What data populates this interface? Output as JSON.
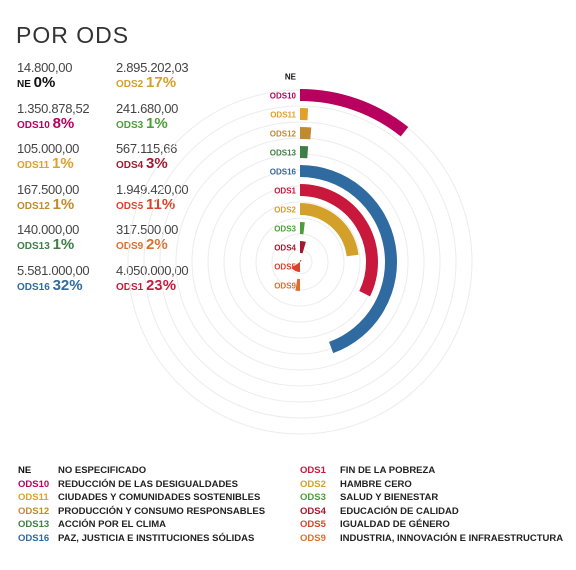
{
  "title": "POR ODS",
  "stats": [
    {
      "code": "NE",
      "amount": "14.800,00",
      "pct": "0%",
      "color": "#111111"
    },
    {
      "code": "ODS2",
      "amount": "2.895.202,03",
      "pct": "17%",
      "color": "#D3A029"
    },
    {
      "code": "ODS10",
      "amount": "1.350.878,52",
      "pct": "8%",
      "color": "#B8005F"
    },
    {
      "code": "ODS3",
      "amount": "241.680,00",
      "pct": "1%",
      "color": "#4C9F38"
    },
    {
      "code": "ODS11",
      "amount": "105.000,00",
      "pct": "1%",
      "color": "#E0A02A"
    },
    {
      "code": "ODS4",
      "amount": "567.115,66",
      "pct": "3%",
      "color": "#A5192F"
    },
    {
      "code": "ODS12",
      "amount": "167.500,00",
      "pct": "1%",
      "color": "#BF8B2E"
    },
    {
      "code": "ODS5",
      "amount": "1.949.420,00",
      "pct": "11%",
      "color": "#D7442A"
    },
    {
      "code": "ODS13",
      "amount": "140.000,00",
      "pct": "1%",
      "color": "#3F7E44"
    },
    {
      "code": "ODS9",
      "amount": "317.500,00",
      "pct": "2%",
      "color": "#DD6F2E"
    },
    {
      "code": "ODS16",
      "amount": "5.581.000,00",
      "pct": "32%",
      "color": "#2F6AA1"
    },
    {
      "code": "ODS1",
      "amount": "4.050.000,00",
      "pct": "23%",
      "color": "#C8183C"
    }
  ],
  "chart_data": {
    "type": "radial-bar",
    "title": "POR ODS",
    "categories": [
      "NE",
      "ODS10",
      "ODS11",
      "ODS12",
      "ODS13",
      "ODS16",
      "ODS1",
      "ODS2",
      "ODS3",
      "ODS4",
      "ODS5",
      "ODS9"
    ],
    "values": [
      14800.0,
      1350878.52,
      105000.0,
      167500.0,
      140000.0,
      5581000.0,
      4050000.0,
      2895202.03,
      241680.0,
      567115.66,
      1949420.0,
      317500.0
    ],
    "percentages": [
      0,
      8,
      1,
      1,
      1,
      32,
      23,
      17,
      1,
      3,
      11,
      2
    ],
    "colors": [
      "#111111",
      "#B8005F",
      "#E0A02A",
      "#BF8B2E",
      "#3F7E44",
      "#2F6AA1",
      "#C8183C",
      "#D3A029",
      "#4C9F38",
      "#A5192F",
      "#D7442A",
      "#DD6F2E"
    ],
    "grid": true
  },
  "legend": [
    {
      "code": "NE",
      "name": "NO ESPECIFICADO",
      "color": "#111111"
    },
    {
      "code": "ODS10",
      "name": "REDUCCIÓN DE LAS DESIGUALDADES",
      "color": "#B8005F"
    },
    {
      "code": "ODS11",
      "name": "CIUDADES Y COMUNIDADES SOSTENIBLES",
      "color": "#E0A02A"
    },
    {
      "code": "ODS12",
      "name": "PRODUCCIÓN Y CONSUMO RESPONSABLES",
      "color": "#BF8B2E"
    },
    {
      "code": "ODS13",
      "name": "ACCIÓN POR EL CLIMA",
      "color": "#3F7E44"
    },
    {
      "code": "ODS16",
      "name": "PAZ, JUSTICIA E INSTITUCIONES SÓLIDAS",
      "color": "#2F6AA1"
    },
    {
      "code": "ODS1",
      "name": "FIN DE LA POBREZA",
      "color": "#C8183C"
    },
    {
      "code": "ODS2",
      "name": "HAMBRE CERO",
      "color": "#D3A029"
    },
    {
      "code": "ODS3",
      "name": "SALUD Y BIENESTAR",
      "color": "#4C9F38"
    },
    {
      "code": "ODS4",
      "name": "EDUCACIÓN DE CALIDAD",
      "color": "#A5192F"
    },
    {
      "code": "ODS5",
      "name": "IGUALDAD DE GÉNERO",
      "color": "#D7442A"
    },
    {
      "code": "ODS9",
      "name": "INDUSTRIA, INNOVACIÓN E INFRAESTRUCTURA",
      "color": "#DD6F2E"
    }
  ]
}
